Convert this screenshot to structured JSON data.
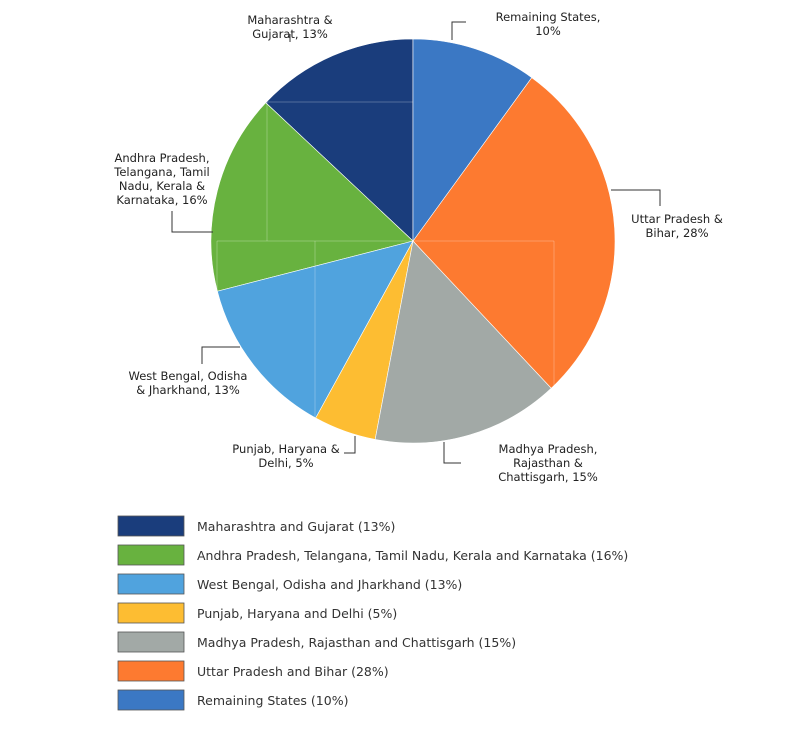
{
  "chart_data": {
    "type": "pie",
    "slices": [
      {
        "key": "maharashtra",
        "value": 13,
        "color": "#1a3d7c",
        "label_lines": [
          "Maharashtra &",
          "Gujarat, 13%"
        ],
        "legend": "Maharashtra and Gujarat (13%)"
      },
      {
        "key": "south",
        "value": 16,
        "color": "#68b23f",
        "label_lines": [
          "Andhra Pradesh,",
          "Telangana, Tamil",
          "Nadu, Kerala &",
          "Karnataka, 16%"
        ],
        "legend": "Andhra Pradesh, Telangana, Tamil Nadu, Kerala and Karnataka (16%)"
      },
      {
        "key": "west-bengal",
        "value": 13,
        "color": "#50a3de",
        "label_lines": [
          "West Bengal, Odisha",
          "& Jharkhand, 13%"
        ],
        "legend": "West Bengal, Odisha and Jharkhand (13%)"
      },
      {
        "key": "punjab",
        "value": 5,
        "color": "#fdbd32",
        "label_lines": [
          "Punjab, Haryana &",
          "Delhi, 5%"
        ],
        "legend": "Punjab, Haryana and Delhi (5%)"
      },
      {
        "key": "madhya-pradesh",
        "value": 15,
        "color": "#a2a9a6",
        "label_lines": [
          "Madhya Pradesh,",
          "Rajasthan &",
          "Chattisgarh, 15%"
        ],
        "legend": "Madhya Pradesh, Rajasthan and Chattisgarh (15%)"
      },
      {
        "key": "uttar-pradesh",
        "value": 28,
        "color": "#fd7a30",
        "label_lines": [
          "Uttar Pradesh &",
          "Bihar, 28%"
        ],
        "legend": "Uttar Pradesh and Bihar (28%)"
      },
      {
        "key": "remaining",
        "value": 10,
        "color": "#3b78c4",
        "label_lines": [
          "Remaining States,",
          "10%"
        ],
        "legend": "Remaining States (10%)"
      }
    ],
    "legend_placement": "bottom"
  }
}
